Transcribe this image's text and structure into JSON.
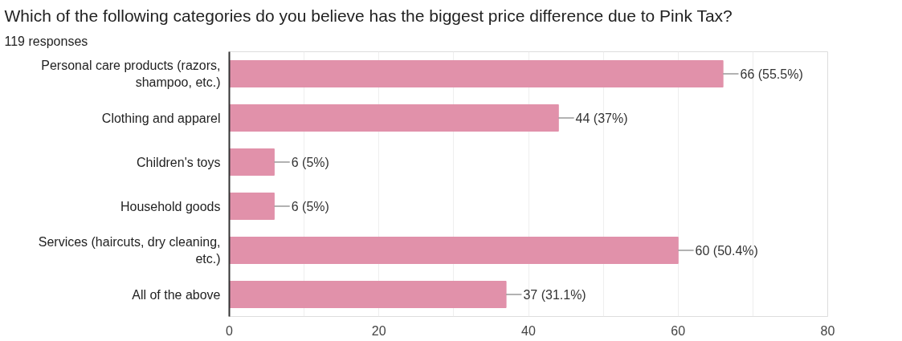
{
  "chart_data": {
    "type": "bar",
    "orientation": "horizontal",
    "title": "Which of the following categories do you believe has the biggest price difference due to Pink Tax?",
    "subtitle": "119 responses",
    "categories": [
      "Personal care products (razors, shampoo, etc.)",
      "Clothing and apparel",
      "Children's toys",
      "Household goods",
      "Services (haircuts, dry cleaning, etc.)",
      "All of the above"
    ],
    "values": [
      66,
      44,
      6,
      6,
      60,
      37
    ],
    "value_labels": [
      "66 (55.5%)",
      "44 (37%)",
      "6 (5%)",
      "6 (5%)",
      "60 (50.4%)",
      "37 (31.1%)"
    ],
    "color": "#e191aa",
    "xlim": [
      0,
      80
    ],
    "xticks": [
      0,
      {
        "value": 10,
        "label": null
      },
      20,
      {
        "value": 30,
        "label": null
      },
      40,
      {
        "value": 50,
        "label": null
      },
      60,
      {
        "value": 70,
        "label": null
      },
      80
    ],
    "grid": "x"
  }
}
